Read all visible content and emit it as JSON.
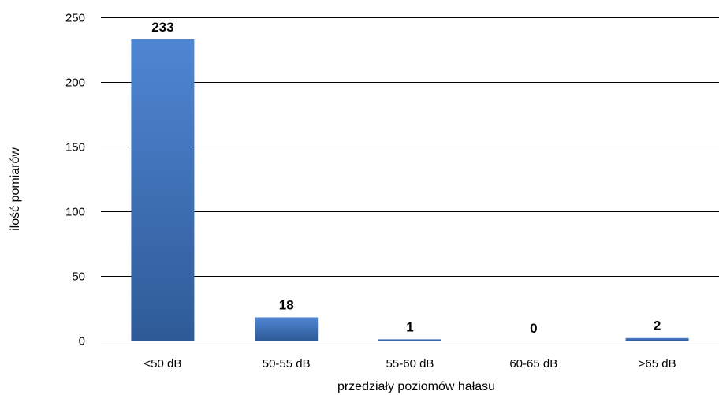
{
  "chart_data": {
    "type": "bar",
    "title": "",
    "xlabel": "przedziały poziomów hałasu",
    "ylabel": "ilość pomiarów",
    "categories": [
      "<50 dB",
      "50-55 dB",
      "55-60 dB",
      "60-65 dB",
      ">65 dB"
    ],
    "values": [
      233,
      18,
      1,
      0,
      2
    ],
    "data_labels": [
      "233",
      "18",
      "1",
      "0",
      "2"
    ],
    "ylim": [
      0,
      250
    ],
    "yticks": [
      0,
      50,
      100,
      150,
      200,
      250
    ],
    "ytick_labels": [
      "0",
      "50",
      "100",
      "150",
      "200",
      "250"
    ],
    "grid": true,
    "legend": "none",
    "bar_color_top": "#4F86D3",
    "bar_color_bottom": "#2E5A97",
    "gridline_color": "#000000"
  }
}
